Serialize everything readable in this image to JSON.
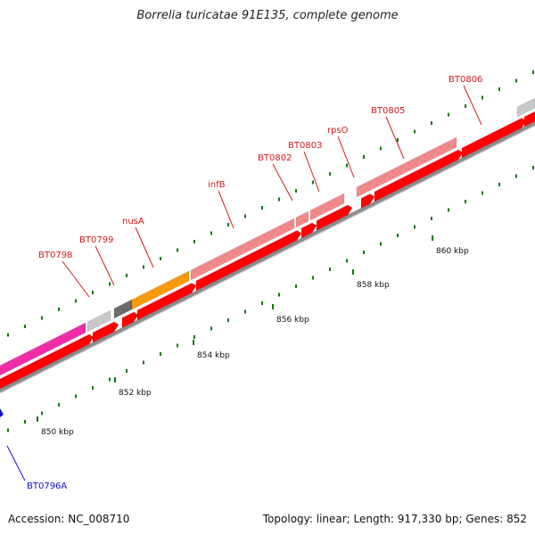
{
  "title": "Borrelia turicatae 91E135, complete genome",
  "footer": {
    "accession": "Accession: NC_008710",
    "summary": "Topology: linear; Length: 917,330 bp; Genes: 852"
  },
  "gene_labels": [
    {
      "id": "BT0796A",
      "color": "#1010cc"
    },
    {
      "id": "BT0798",
      "color": "#d11a1a"
    },
    {
      "id": "BT0799",
      "color": "#d11a1a"
    },
    {
      "id": "nusA",
      "color": "#d11a1a"
    },
    {
      "id": "infB",
      "color": "#d11a1a"
    },
    {
      "id": "BT0802",
      "color": "#d11a1a"
    },
    {
      "id": "BT0803",
      "color": "#d11a1a"
    },
    {
      "id": "rpsO",
      "color": "#d11a1a"
    },
    {
      "id": "BT0805",
      "color": "#d11a1a"
    },
    {
      "id": "BT0806",
      "color": "#d11a1a"
    }
  ],
  "scale_labels": [
    "850 kbp",
    "852 kbp",
    "854 kbp",
    "856 kbp",
    "858 kbp",
    "860 kbp"
  ],
  "colors": {
    "cds": "#ff0000",
    "cds_dark": "#c80000",
    "feature_pink": "#f08a8a",
    "feature_magenta": "#ef2da8",
    "feature_orange": "#f79a0e",
    "feature_grey": "#c8c8c8",
    "feature_darkgrey": "#6b6b6b",
    "backbone": "#8c8c8c",
    "tick": "#117711"
  }
}
